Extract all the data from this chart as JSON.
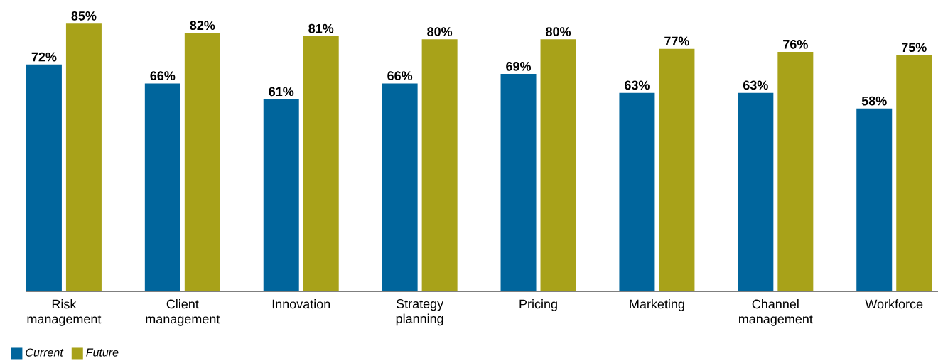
{
  "chart_data": {
    "type": "bar",
    "categories": [
      "Risk management",
      "Client management",
      "Innovation",
      "Strategy planning",
      "Pricing",
      "Marketing",
      "Channel management",
      "Workforce"
    ],
    "series": [
      {
        "name": "Current",
        "color": "#00659c",
        "values": [
          72,
          66,
          61,
          66,
          69,
          63,
          63,
          58
        ],
        "value_labels": [
          "72%",
          "66%",
          "61%",
          "66%",
          "69%",
          "63%",
          "63%",
          "58%"
        ]
      },
      {
        "name": "Future",
        "color": "#a8a219",
        "values": [
          85,
          82,
          81,
          80,
          80,
          77,
          76,
          75
        ],
        "value_labels": [
          "85%",
          "82%",
          "81%",
          "80%",
          "80%",
          "77%",
          "76%",
          "75%"
        ]
      }
    ],
    "legend": "bottom left"
  }
}
